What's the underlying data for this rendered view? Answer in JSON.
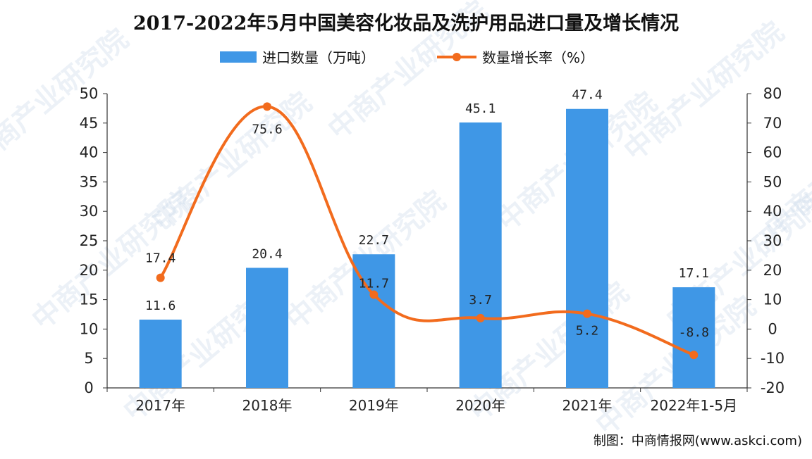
{
  "watermark": "中商产业研究院",
  "source": "制图：中商情报网(www.askci.com)",
  "colors": {
    "bar": "#3f97e6",
    "line": "#f26b1d",
    "axis": "#333333"
  },
  "chart_data": {
    "type": "bar",
    "title": "2017-2022年5月中国美容化妆品及洗护用品进口量及增长情况",
    "categories": [
      "2017年",
      "2018年",
      "2019年",
      "2020年",
      "2021年",
      "2022年1-5月"
    ],
    "series": [
      {
        "name": "进口数量（万吨）",
        "type": "bar",
        "axis": "left",
        "values": [
          11.6,
          20.4,
          22.7,
          45.1,
          47.4,
          17.1
        ],
        "labels": [
          "11.6",
          "20.4",
          "22.7",
          "45.1",
          "47.4",
          "17.1"
        ]
      },
      {
        "name": "数量增长率（%）",
        "type": "line",
        "axis": "right",
        "values": [
          17.4,
          75.6,
          11.7,
          3.7,
          5.2,
          -8.8
        ],
        "labels": [
          "17.4",
          "75.6",
          "11.7",
          "3.7",
          "5.2",
          "-8.8"
        ]
      }
    ],
    "y_left": {
      "min": 0,
      "max": 50,
      "step": 5,
      "ticks": [
        "0",
        "5",
        "10",
        "15",
        "20",
        "25",
        "30",
        "35",
        "40",
        "45",
        "50"
      ]
    },
    "y_right": {
      "min": -20,
      "max": 80,
      "step": 10,
      "ticks": [
        "-20",
        "-10",
        "0",
        "10",
        "20",
        "30",
        "40",
        "50",
        "60",
        "70",
        "80"
      ]
    },
    "legend": "top-center",
    "grid": false
  }
}
